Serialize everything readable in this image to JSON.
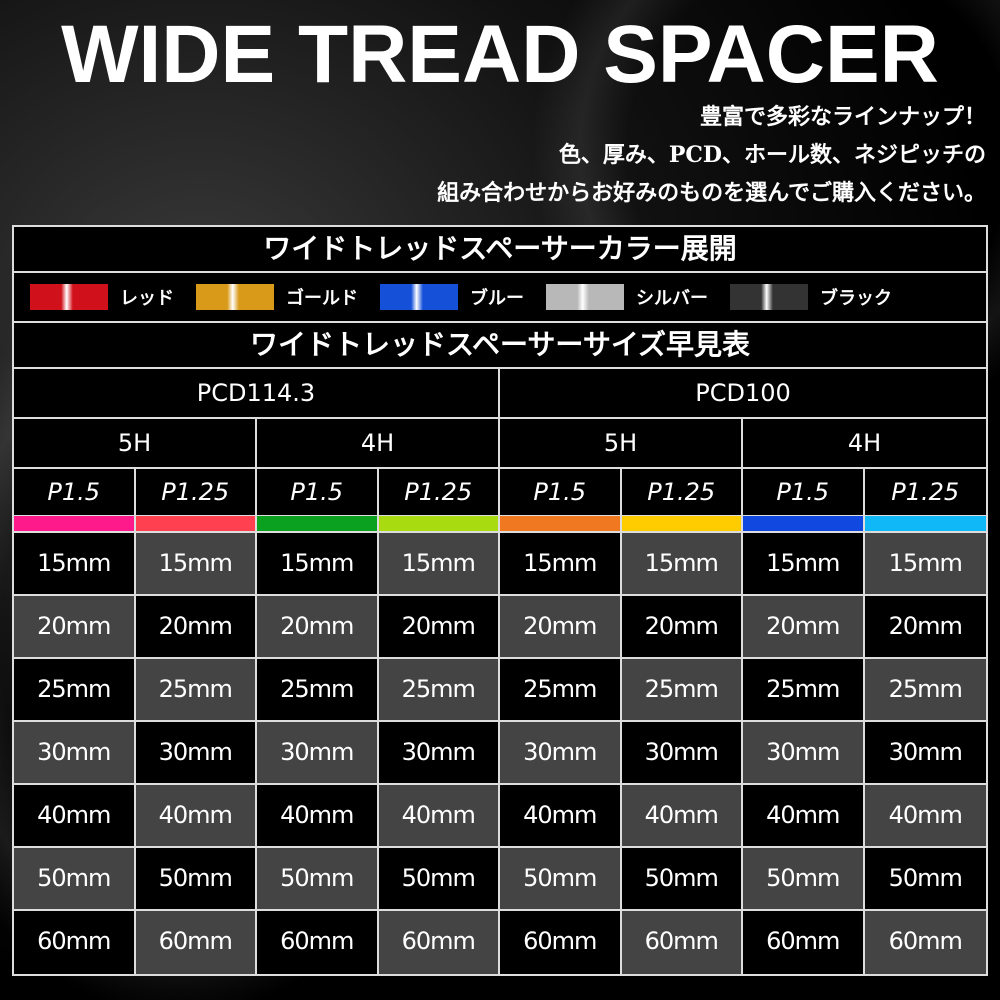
{
  "title": "WIDE TREAD SPACER",
  "subtitle": [
    "豊富で多彩なラインナップ！",
    "色、厚み、PCD、ホール数、ネジピッチの",
    "組み合わせからお好みのものを選んでご購入ください。"
  ],
  "color_heading": "ワイドトレッドスペーサーカラー展開",
  "colors": [
    {
      "label": "レッド",
      "swatch": "#d0101a"
    },
    {
      "label": "ゴールド",
      "swatch": "#d89a18"
    },
    {
      "label": "ブルー",
      "swatch": "#1450d8"
    },
    {
      "label": "シルバー",
      "swatch": "#b8b8b8"
    },
    {
      "label": "ブラック",
      "swatch": "#333333"
    }
  ],
  "size_heading": "ワイドトレッドスペーサーサイズ早見表",
  "pcd": [
    "PCD114.3",
    "PCD100"
  ],
  "holes": [
    "5H",
    "4H",
    "5H",
    "4H"
  ],
  "pitch": [
    "P1.5",
    "P1.25",
    "P1.5",
    "P1.25",
    "P1.5",
    "P1.25",
    "P1.5",
    "P1.25"
  ],
  "stripe_colors": [
    "#ff1a8c",
    "#ff4050",
    "#0aa020",
    "#a8dc10",
    "#f07820",
    "#ffcc00",
    "#1048e0",
    "#10b8f8"
  ],
  "sizes": [
    "15mm",
    "20mm",
    "25mm",
    "30mm",
    "40mm",
    "50mm",
    "60mm"
  ]
}
